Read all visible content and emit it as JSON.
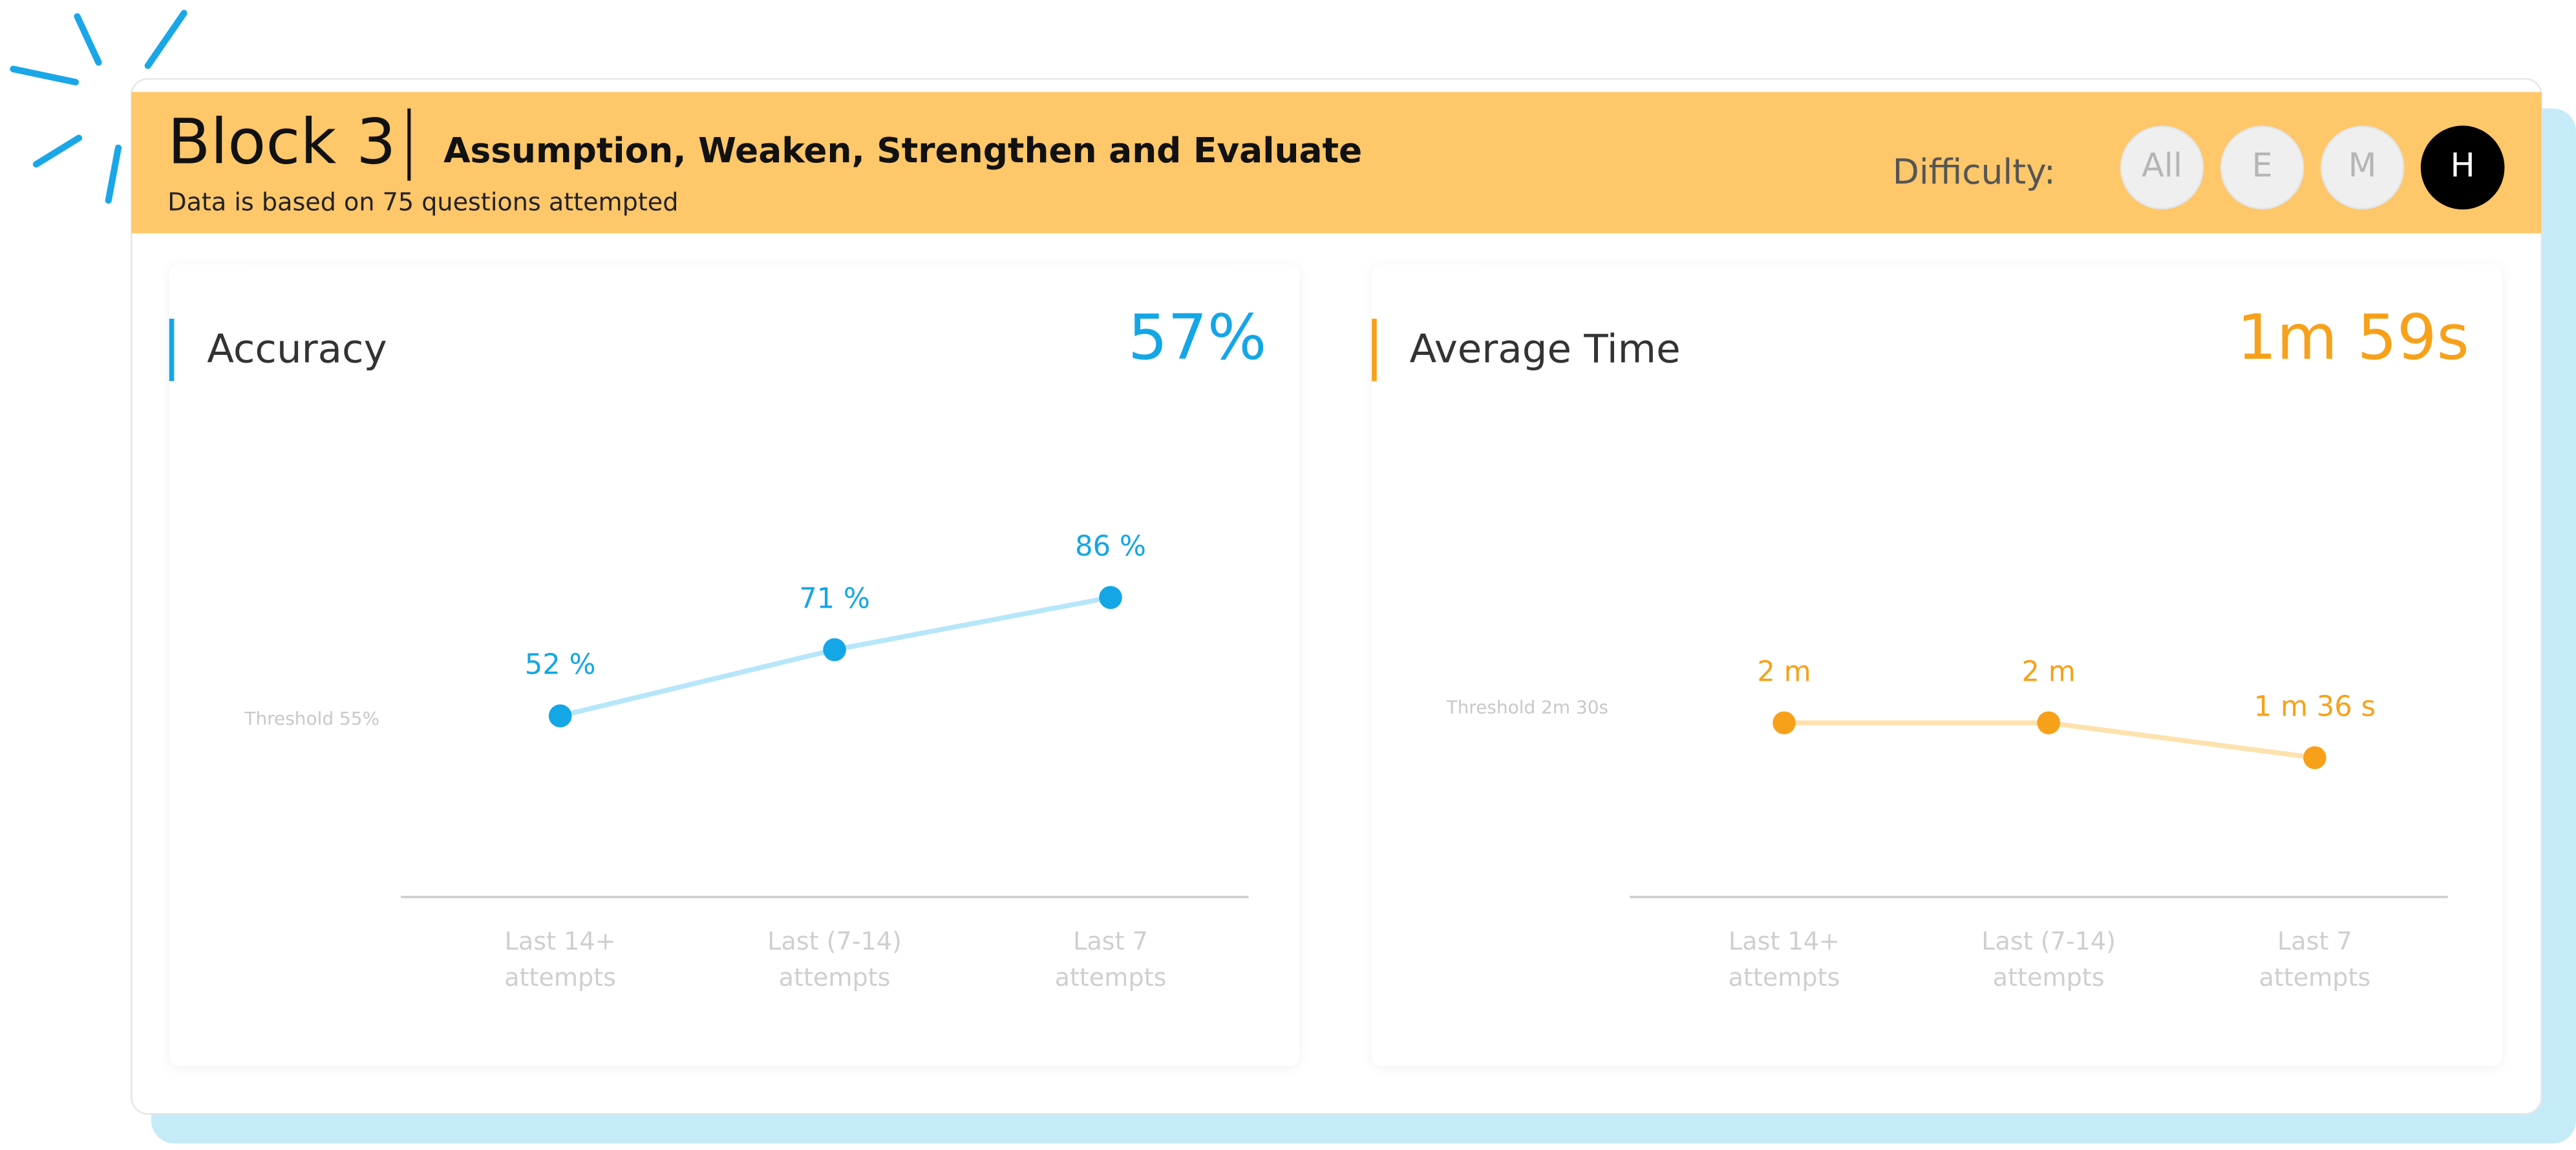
{
  "header": {
    "title": "Block 3",
    "subtitle": "Assumption, Weaken, Strengthen and Evaluate",
    "note": "Data is based on 75 questions attempted",
    "difficulty": {
      "label": "Difficulty:",
      "options": [
        "All",
        "E",
        "M",
        "H"
      ],
      "selected_index": 3
    }
  },
  "chart_data": [
    {
      "type": "line",
      "title": "Accuracy",
      "headline": "57%",
      "threshold": "Threshold 55%",
      "categories": [
        "Last 14+ attempts",
        "Last (7-14) attempts",
        "Last 7 attempts"
      ],
      "values": [
        52,
        71,
        86
      ],
      "value_labels": [
        "52 %",
        "71 %",
        "86 %"
      ],
      "color": "#14a6e6",
      "line_color": "#b6e6fa",
      "ylim": [
        0,
        100
      ]
    },
    {
      "type": "line",
      "title": "Average Time",
      "headline": "1m 59s",
      "threshold": "Threshold 2m 30s",
      "categories": [
        "Last 14+ attempts",
        "Last (7-14) attempts",
        "Last 7 attempts"
      ],
      "values": [
        120,
        120,
        96
      ],
      "value_labels": [
        "2 m",
        "2 m",
        "1 m 36 s"
      ],
      "color": "#f7a11a",
      "line_color": "#fde2ae",
      "ylim": [
        0,
        240
      ]
    }
  ]
}
